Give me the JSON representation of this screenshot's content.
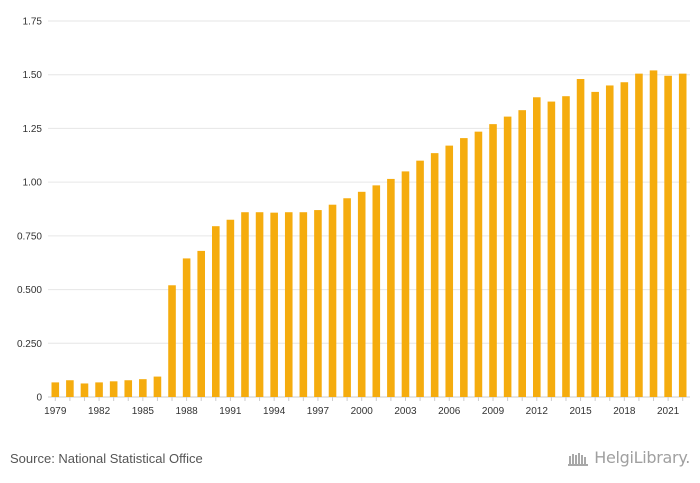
{
  "chart_data": {
    "type": "bar",
    "categories": [
      "1979",
      "1980",
      "1981",
      "1982",
      "1983",
      "1984",
      "1985",
      "1986",
      "1987",
      "1988",
      "1989",
      "1990",
      "1991",
      "1992",
      "1993",
      "1994",
      "1995",
      "1996",
      "1997",
      "1998",
      "1999",
      "2000",
      "2001",
      "2002",
      "2003",
      "2004",
      "2005",
      "2006",
      "2007",
      "2008",
      "2009",
      "2010",
      "2011",
      "2012",
      "2013",
      "2014",
      "2015",
      "2016",
      "2017",
      "2018",
      "2019",
      "2020",
      "2021",
      "2022"
    ],
    "values": [
      0.068,
      0.078,
      0.063,
      0.068,
      0.073,
      0.078,
      0.083,
      0.095,
      0.52,
      0.645,
      0.68,
      0.795,
      0.825,
      0.86,
      0.86,
      0.858,
      0.86,
      0.86,
      0.87,
      0.895,
      0.925,
      0.955,
      0.985,
      1.015,
      1.05,
      1.1,
      1.135,
      1.17,
      1.205,
      1.235,
      1.27,
      1.305,
      1.335,
      1.395,
      1.375,
      1.4,
      1.48,
      1.42,
      1.45,
      1.465,
      1.505,
      1.52,
      1.495,
      1.505
    ],
    "x_tick_labels": [
      "1979",
      "1982",
      "1985",
      "1988",
      "1991",
      "1994",
      "1997",
      "2000",
      "2003",
      "2006",
      "2009",
      "2012",
      "2015",
      "2018",
      "2021"
    ],
    "y_tick_labels": [
      "0",
      "0.250",
      "0.500",
      "0.750",
      "1.00",
      "1.25",
      "1.50",
      "1.75"
    ],
    "ylim": [
      0,
      1.75
    ],
    "grid": true,
    "bar_color": "#f5ac0e",
    "title": "",
    "xlabel": "",
    "ylabel": ""
  },
  "footer": {
    "source": "Source: National Statistical Office",
    "brand": "HelgiLibrary."
  }
}
